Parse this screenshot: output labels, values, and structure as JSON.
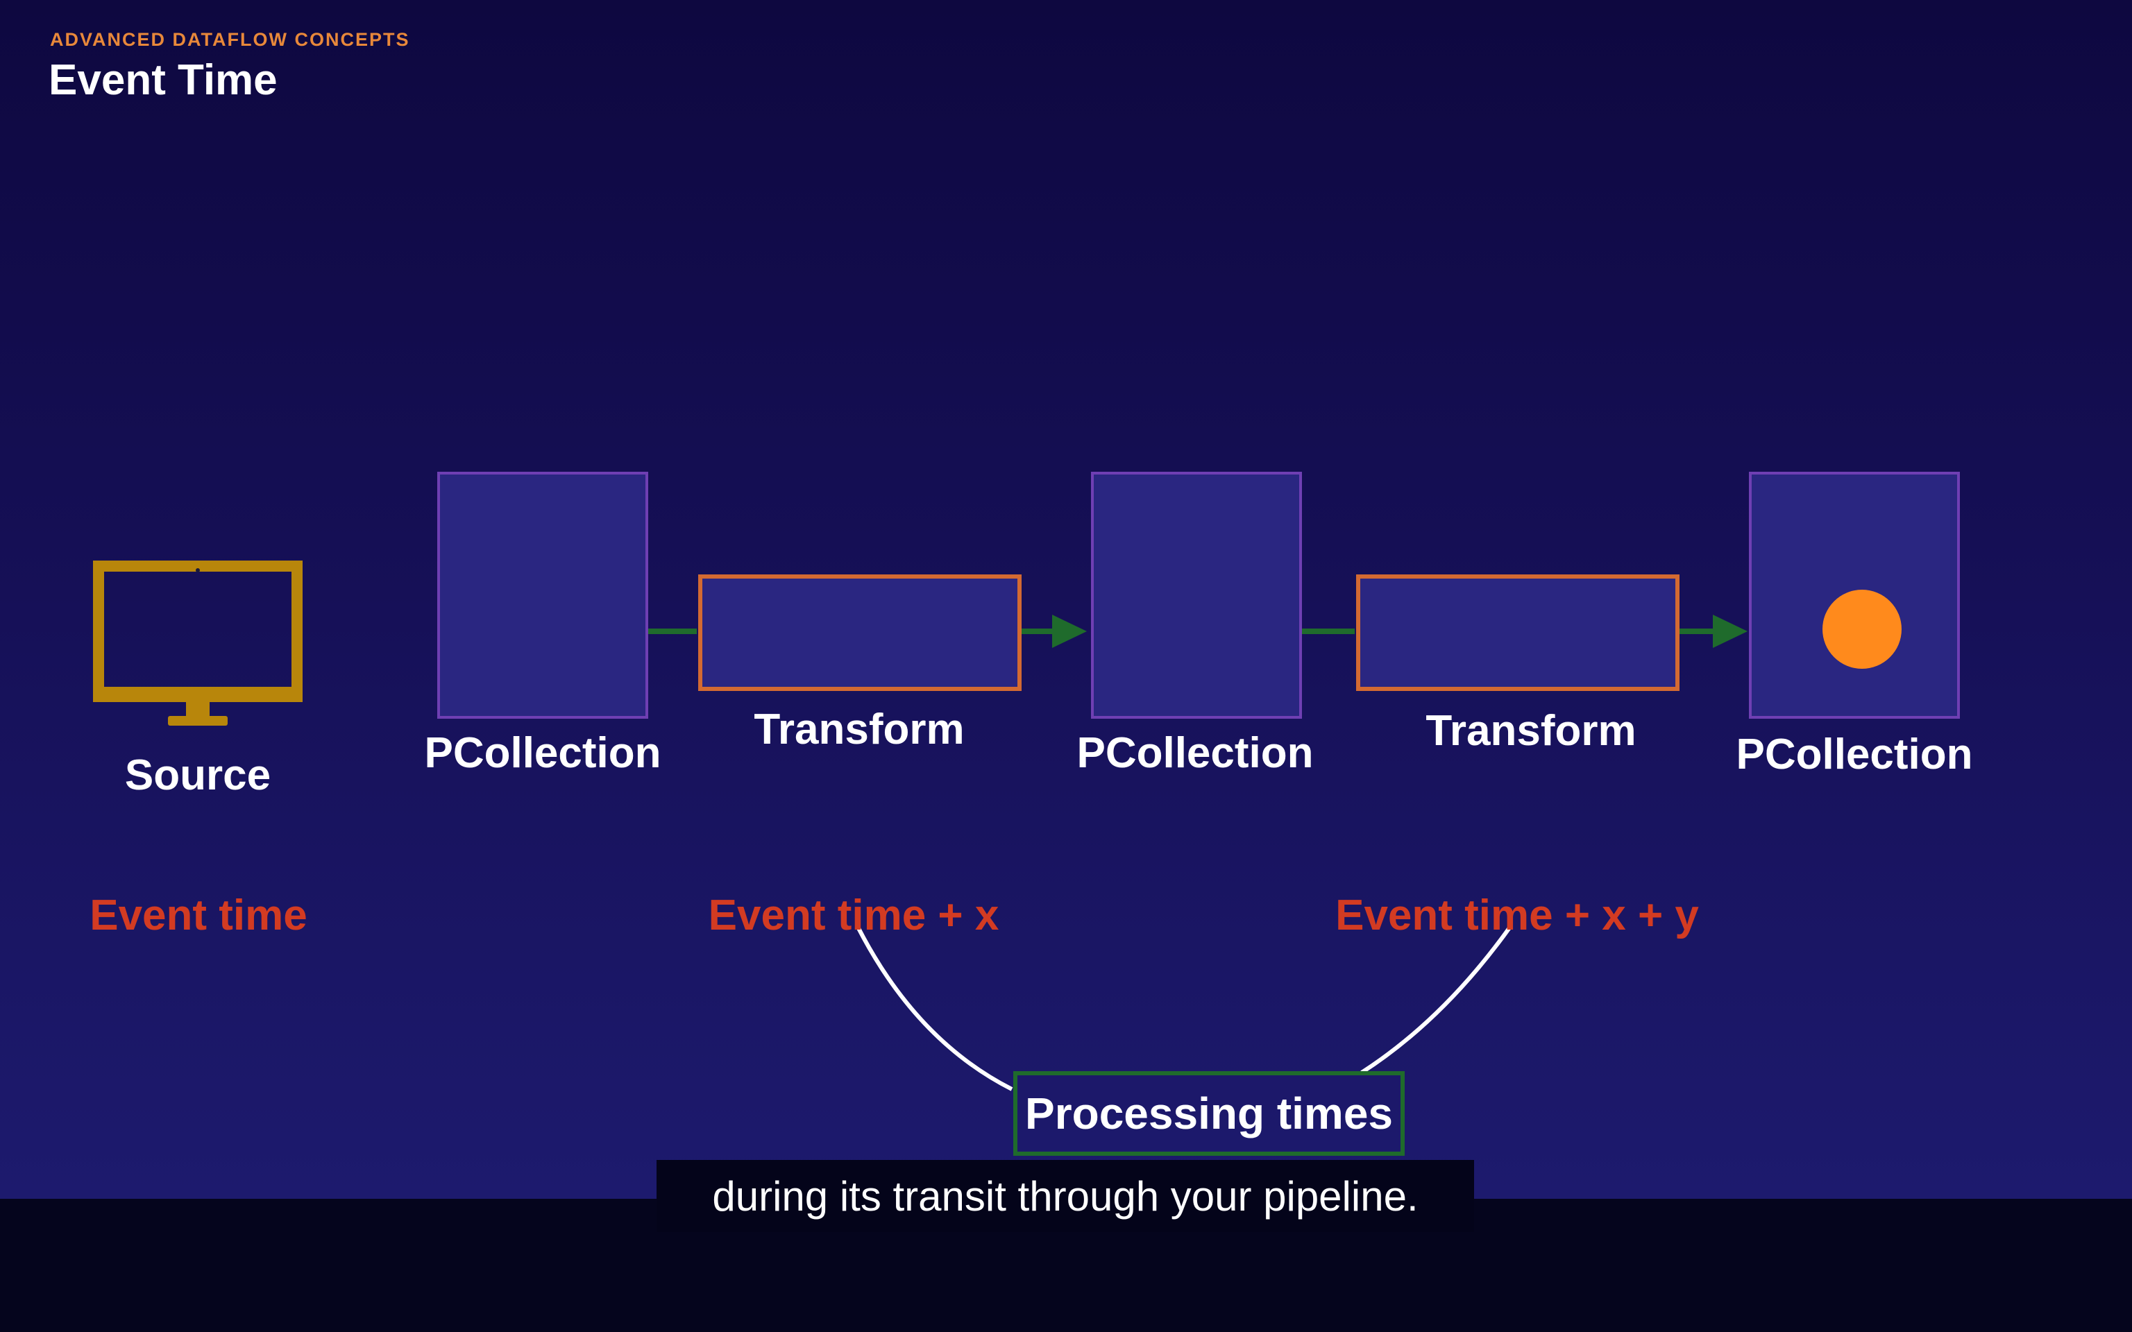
{
  "slide": {
    "kicker": "ADVANCED DATAFLOW CONCEPTS",
    "title": "Event Time"
  },
  "diagram": {
    "source": {
      "label": "Source",
      "icon": "monitor-icon",
      "color": "#b8860b"
    },
    "pcollections": [
      {
        "label": "PCollection"
      },
      {
        "label": "PCollection"
      },
      {
        "label": "PCollection"
      }
    ],
    "transforms": [
      {
        "label": "Transform"
      },
      {
        "label": "Transform"
      }
    ],
    "event_times": [
      {
        "label": "Event time"
      },
      {
        "label": "Event time + x"
      },
      {
        "label": "Event time + x + y"
      }
    ],
    "processing_times": {
      "label": "Processing times"
    },
    "element_dot_color": "#ff8a1c",
    "arrow_color": "#1f6b2c"
  },
  "caption": {
    "text": "during its transit through your pipeline."
  }
}
